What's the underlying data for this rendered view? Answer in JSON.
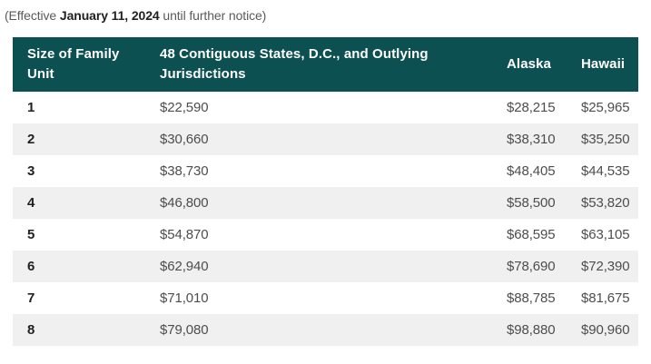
{
  "caption": {
    "prefix": "(Effective ",
    "date": "January 11, 2024",
    "suffix": " until further notice)"
  },
  "table": {
    "columns": [
      "Size of Family Unit",
      "48 Contiguous States, D.C., and Outlying Jurisdictions",
      "Alaska",
      "Hawaii"
    ],
    "rows": [
      {
        "size": "1",
        "contiguous": "$22,590",
        "alaska": "$28,215",
        "hawaii": "$25,965"
      },
      {
        "size": "2",
        "contiguous": "$30,660",
        "alaska": "$38,310",
        "hawaii": "$35,250"
      },
      {
        "size": "3",
        "contiguous": "$38,730",
        "alaska": "$48,405",
        "hawaii": "$44,535"
      },
      {
        "size": "4",
        "contiguous": "$46,800",
        "alaska": "$58,500",
        "hawaii": "$53,820"
      },
      {
        "size": "5",
        "contiguous": "$54,870",
        "alaska": "$68,595",
        "hawaii": "$63,105"
      },
      {
        "size": "6",
        "contiguous": "$62,940",
        "alaska": "$78,690",
        "hawaii": "$72,390"
      },
      {
        "size": "7",
        "contiguous": "$71,010",
        "alaska": "$88,785",
        "hawaii": "$81,675"
      },
      {
        "size": "8",
        "contiguous": "$79,080",
        "alaska": "$98,880",
        "hawaii": "$90,960"
      }
    ]
  },
  "colors": {
    "header_bg": "#0d5052",
    "header_text": "#ffffff",
    "row_alt_bg": "#f0f0f0",
    "value_text": "#4d4d4d",
    "strong_text": "#212121",
    "caption_text": "#5a5a5a"
  }
}
